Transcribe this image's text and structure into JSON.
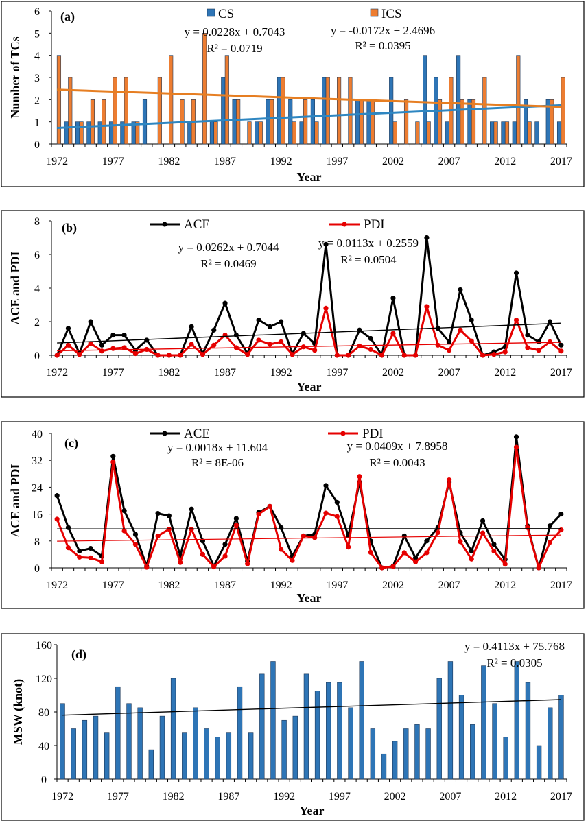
{
  "colors": {
    "cs": "#2e75b6",
    "ics": "#ed7d31",
    "cs_trend": "#2e86c1",
    "ics_trend": "#e67e22",
    "ace": "#000000",
    "pdi": "#e60000",
    "msw": "#2e75b6"
  },
  "chart_data": [
    {
      "id": "a",
      "type": "bar",
      "panel_label": "(a)",
      "xlabel": "Year",
      "ylabel": "Number of TCs",
      "ylim": [
        0,
        6
      ],
      "yticks": [
        0,
        1,
        2,
        3,
        4,
        5,
        6
      ],
      "xticks": [
        1972,
        1977,
        1982,
        1987,
        1992,
        1997,
        2002,
        2007,
        2012,
        2017
      ],
      "legend_placement": "top",
      "categories": [
        1972,
        1973,
        1974,
        1975,
        1976,
        1977,
        1978,
        1979,
        1980,
        1981,
        1982,
        1983,
        1984,
        1985,
        1986,
        1987,
        1988,
        1989,
        1990,
        1991,
        1992,
        1993,
        1994,
        1995,
        1996,
        1997,
        1998,
        1999,
        2000,
        2001,
        2002,
        2003,
        2004,
        2005,
        2006,
        2007,
        2008,
        2009,
        2010,
        2011,
        2012,
        2013,
        2014,
        2015,
        2016,
        2017
      ],
      "series": [
        {
          "name": "CS",
          "color_key": "cs",
          "values": [
            0,
            1,
            1,
            1,
            1,
            1,
            1,
            1,
            2,
            0,
            0,
            0,
            1,
            0,
            1,
            3,
            2,
            0,
            1,
            2,
            3,
            2,
            1,
            2,
            3,
            0,
            0,
            2,
            2,
            0,
            3,
            0,
            0,
            4,
            3,
            1,
            4,
            2,
            0,
            1,
            1,
            1,
            2,
            1,
            2,
            1
          ]
        },
        {
          "name": "ICS",
          "color_key": "ics",
          "values": [
            4,
            3,
            1,
            2,
            2,
            3,
            3,
            1,
            0,
            3,
            4,
            2,
            2,
            5,
            1,
            4,
            2,
            1,
            1,
            2,
            3,
            1,
            2,
            1,
            3,
            3,
            3,
            2,
            2,
            0,
            1,
            2,
            1,
            1,
            2,
            3,
            2,
            2,
            3,
            1,
            1,
            4,
            1,
            0,
            2,
            3
          ]
        }
      ],
      "trendlines": [
        {
          "series": "CS",
          "color_key": "cs_trend",
          "slope": 0.0228,
          "intercept": 0.7043,
          "width": 3,
          "equation": "y = 0.0228x + 0.7043",
          "r2": "R² = 0.0719"
        },
        {
          "series": "ICS",
          "color_key": "ics_trend",
          "slope": -0.0172,
          "intercept": 2.4696,
          "width": 3,
          "equation": "y = -0.0172x + 2.4696",
          "r2": "R² = 0.0395"
        }
      ]
    },
    {
      "id": "b",
      "type": "line",
      "panel_label": "(b)",
      "xlabel": "Year",
      "ylabel": "ACE and PDI",
      "ylim": [
        0,
        8
      ],
      "yticks": [
        0,
        2,
        4,
        6,
        8
      ],
      "xticks": [
        1972,
        1977,
        1982,
        1987,
        1992,
        1997,
        2002,
        2007,
        2012,
        2017
      ],
      "legend_placement": "top",
      "x": [
        1972,
        1973,
        1974,
        1975,
        1976,
        1977,
        1978,
        1979,
        1980,
        1981,
        1982,
        1983,
        1984,
        1985,
        1986,
        1987,
        1988,
        1989,
        1990,
        1991,
        1992,
        1993,
        1994,
        1995,
        1996,
        1997,
        1998,
        1999,
        2000,
        2001,
        2002,
        2003,
        2004,
        2005,
        2006,
        2007,
        2008,
        2009,
        2010,
        2011,
        2012,
        2013,
        2014,
        2015,
        2016,
        2017
      ],
      "series": [
        {
          "name": "ACE",
          "color_key": "ace",
          "values": [
            0,
            1.6,
            0.1,
            2.0,
            0.6,
            1.2,
            1.2,
            0.3,
            0.9,
            0,
            0,
            0,
            1.7,
            0.1,
            1.5,
            3.1,
            1.2,
            0.1,
            2.1,
            1.7,
            2.0,
            0.1,
            1.3,
            0.7,
            6.6,
            0,
            0,
            1.5,
            1.0,
            0,
            3.4,
            0,
            0,
            7.0,
            1.6,
            0.8,
            3.9,
            2.1,
            0,
            0.2,
            0.5,
            4.9,
            1.2,
            0.8,
            2.0,
            0.6
          ]
        },
        {
          "name": "PDI",
          "color_key": "pdi",
          "values": [
            0,
            0.6,
            0.05,
            0.7,
            0.25,
            0.4,
            0.45,
            0.1,
            0.35,
            0,
            0,
            0,
            0.65,
            0.05,
            0.6,
            1.2,
            0.45,
            0.05,
            0.9,
            0.65,
            0.8,
            0.05,
            0.5,
            0.3,
            2.8,
            0,
            0,
            0.55,
            0.35,
            0,
            1.3,
            0,
            0,
            2.9,
            0.6,
            0.3,
            1.5,
            0.85,
            0,
            0.05,
            0.2,
            2.1,
            0.45,
            0.3,
            0.8,
            0.25
          ]
        }
      ],
      "trendlines": [
        {
          "series": "ACE",
          "color_key": "ace",
          "slope": 0.0262,
          "intercept": 0.7044,
          "width": 1.4,
          "equation": "y = 0.0262x + 0.7044",
          "r2": "R² = 0.0469"
        },
        {
          "series": "PDI",
          "color_key": "pdi",
          "slope": 0.0113,
          "intercept": 0.2559,
          "width": 1.4,
          "equation": "y = 0.0113x + 0.2559",
          "r2": "R² = 0.0504"
        }
      ]
    },
    {
      "id": "c",
      "type": "line",
      "panel_label": "(c)",
      "xlabel": "Year",
      "ylabel": "ACE and PDI",
      "ylim": [
        0,
        40
      ],
      "yticks": [
        0,
        8,
        16,
        24,
        32,
        40
      ],
      "xticks": [
        1972,
        1977,
        1982,
        1987,
        1992,
        1997,
        2002,
        2007,
        2012,
        2017
      ],
      "legend_placement": "top",
      "x": [
        1972,
        1973,
        1974,
        1975,
        1976,
        1977,
        1978,
        1979,
        1980,
        1981,
        1982,
        1983,
        1984,
        1985,
        1986,
        1987,
        1988,
        1989,
        1990,
        1991,
        1992,
        1993,
        1994,
        1995,
        1996,
        1997,
        1998,
        1999,
        2000,
        2001,
        2002,
        2003,
        2004,
        2005,
        2006,
        2007,
        2008,
        2009,
        2010,
        2011,
        2012,
        2013,
        2014,
        2015,
        2016,
        2017
      ],
      "series": [
        {
          "name": "ACE",
          "color_key": "ace",
          "values": [
            21.5,
            12,
            5,
            5.8,
            3.5,
            33.2,
            17,
            10,
            0.5,
            16.2,
            15.5,
            3.5,
            17.5,
            8,
            0.5,
            7,
            14.7,
            2,
            16.5,
            18.3,
            12,
            3.5,
            9.5,
            10,
            24.5,
            19.5,
            9.5,
            25.5,
            8,
            0,
            0.5,
            9.5,
            3,
            8,
            12,
            25.5,
            10.5,
            5,
            14,
            7,
            2.5,
            39,
            12.5,
            0,
            12.5,
            16
          ]
        },
        {
          "name": "PDI",
          "color_key": "pdi",
          "values": [
            14.5,
            6,
            3.2,
            3,
            1.8,
            31.5,
            11,
            7,
            0.2,
            9.5,
            11.5,
            1.6,
            11.5,
            4,
            0.3,
            3.5,
            12.7,
            1.2,
            16,
            18.3,
            5.5,
            2.2,
            9.5,
            9,
            16.3,
            15.3,
            6.2,
            27.2,
            4.6,
            0,
            0.4,
            4.5,
            1.8,
            4.5,
            10.5,
            26.2,
            7.8,
            2.6,
            10.4,
            5,
            1.1,
            35.9,
            12,
            0,
            7.6,
            11.3
          ]
        }
      ],
      "trendlines": [
        {
          "series": "ACE",
          "color_key": "ace",
          "slope": 0.0018,
          "intercept": 11.604,
          "width": 1.2,
          "equation": "y = 0.0018x + 11.604",
          "r2": "R² = 8E-06"
        },
        {
          "series": "PDI",
          "color_key": "pdi",
          "slope": 0.0409,
          "intercept": 7.8958,
          "width": 1.2,
          "equation": "y = 0.0409x + 7.8958",
          "r2": "R² = 0.0043"
        }
      ]
    },
    {
      "id": "d",
      "type": "bar",
      "panel_label": "(d)",
      "xlabel": "Year",
      "ylabel": "MSW (knot)",
      "ylim": [
        0,
        160
      ],
      "yticks": [
        0,
        40,
        80,
        120,
        160
      ],
      "xticks": [
        1972,
        1977,
        1982,
        1987,
        1992,
        1997,
        2002,
        2007,
        2012,
        2017
      ],
      "categories": [
        1972,
        1973,
        1974,
        1975,
        1976,
        1977,
        1978,
        1979,
        1980,
        1981,
        1982,
        1983,
        1984,
        1985,
        1986,
        1987,
        1988,
        1989,
        1990,
        1991,
        1992,
        1993,
        1994,
        1995,
        1996,
        1997,
        1998,
        1999,
        2000,
        2001,
        2002,
        2003,
        2004,
        2005,
        2006,
        2007,
        2008,
        2009,
        2010,
        2011,
        2012,
        2013,
        2014,
        2015,
        2016,
        2017
      ],
      "series": [
        {
          "name": "",
          "color_key": "msw",
          "values": [
            90,
            60,
            70,
            75,
            55,
            110,
            90,
            85,
            35,
            75,
            120,
            55,
            85,
            60,
            50,
            55,
            110,
            55,
            125,
            140,
            70,
            75,
            125,
            105,
            115,
            115,
            85,
            140,
            60,
            30,
            45,
            60,
            65,
            60,
            120,
            140,
            100,
            65,
            135,
            90,
            50,
            140,
            115,
            40,
            85,
            100
          ]
        }
      ],
      "trendlines": [
        {
          "series": "MSW",
          "color_key": "ace",
          "slope": 0.4113,
          "intercept": 75.768,
          "width": 1.4,
          "equation": "y = 0.4113x + 75.768",
          "r2": "R² = 0.0305"
        }
      ]
    }
  ]
}
